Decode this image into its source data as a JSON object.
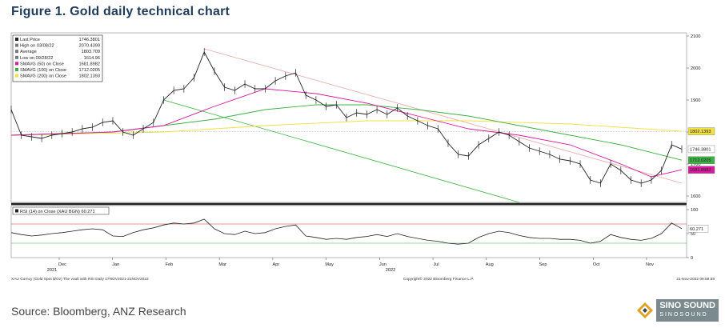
{
  "figure_title": "Figure 1. Gold daily technical chart",
  "source": "Source: Bloomberg, ANZ Research",
  "logo": {
    "name": "SINO SOUND",
    "sub": "SINOSOUND",
    "icon": "diamond-logo-icon"
  },
  "colors": {
    "price": "#222222",
    "sma50": "#d81b9e",
    "sma100": "#3cb043",
    "sma200": "#f0e040",
    "trend": "#3cb043",
    "trend_upper": "#e9a9a9",
    "rsi": "#222222",
    "rsi_upper": "#cc2222",
    "rsi_lower": "#3cb043"
  },
  "footer": {
    "left": "XAU Curncy (Gold Spot   $/Oz) The vault with RSI  Daily 17NOV2021-21NOV2022",
    "center": "Copyright© 2022 Bloomberg Finance L.P.",
    "right": "21-Nov-2022 09:58:59"
  },
  "chart_data": {
    "type": "line",
    "title": "",
    "xlabel": "",
    "ylabel": "",
    "x_ticks": [
      "Dec",
      "Jan",
      "Feb",
      "Mar",
      "Apr",
      "May",
      "Jun",
      "Jul",
      "Aug",
      "Sep",
      "Oct",
      "Nov"
    ],
    "x_years": [
      "2021",
      "2022"
    ],
    "ylim": [
      1580,
      2110
    ],
    "y_ticks": [
      1600,
      1700,
      1800,
      1900,
      2000,
      2100
    ],
    "grid": false,
    "legend": "top-left",
    "legend_entries": [
      {
        "label": "Last Price",
        "value": "1746.3801",
        "color": "#222222"
      },
      {
        "label": "High on 03/08/22",
        "value": "2070.4399",
        "color": "#777777"
      },
      {
        "label": "Average",
        "value": "1803.709",
        "color": "#777777"
      },
      {
        "label": "Low on 09/28/22",
        "value": "1614.96",
        "color": "#777777"
      },
      {
        "label": "SMAVG (50)  on Close",
        "value": "1681.8982",
        "color": "#d81b9e"
      },
      {
        "label": "SMAVG (100)  on Close",
        "value": "1712.0205",
        "color": "#3cb043"
      },
      {
        "label": "SMAVG (200)  on Close",
        "value": "1802.1393",
        "color": "#f0e040"
      }
    ],
    "value_labels": [
      {
        "value": "1802.1393",
        "bg": "#f0e040",
        "fg": "#222222",
        "y": 1802.1393
      },
      {
        "value": "1746.3801",
        "bg": "#ffffff",
        "fg": "#222222",
        "y": 1746.3801
      },
      {
        "value": "1712.0205",
        "bg": "#3cb043",
        "fg": "#ffffff",
        "y": 1712.0205
      },
      {
        "value": "1681.8982",
        "bg": "#d81b9e",
        "fg": "#ffffff",
        "y": 1681.8982
      }
    ],
    "series": [
      {
        "name": "Last Price",
        "x": [
          0,
          4,
          8,
          12,
          16,
          20,
          24,
          28,
          32,
          36,
          40,
          44,
          48,
          52,
          56,
          60,
          64,
          68,
          72,
          76,
          80,
          84,
          88,
          92,
          96,
          100,
          104,
          108,
          112,
          116,
          120,
          124,
          128,
          132,
          136,
          140,
          144,
          148,
          152,
          156,
          160,
          164,
          168,
          172,
          176,
          180,
          184,
          188,
          192,
          196,
          200,
          204,
          208,
          212,
          216,
          220,
          224,
          228,
          232,
          236,
          240,
          244,
          248,
          252,
          256,
          260,
          264
        ],
        "values": [
          1870,
          1790,
          1785,
          1780,
          1790,
          1795,
          1800,
          1810,
          1815,
          1830,
          1835,
          1800,
          1790,
          1810,
          1830,
          1900,
          1930,
          1935,
          1970,
          2050,
          1990,
          1940,
          1930,
          1950,
          1935,
          1935,
          1960,
          1975,
          1985,
          1915,
          1900,
          1880,
          1885,
          1845,
          1860,
          1855,
          1870,
          1855,
          1875,
          1850,
          1835,
          1820,
          1810,
          1765,
          1730,
          1725,
          1760,
          1780,
          1800,
          1790,
          1770,
          1750,
          1740,
          1730,
          1715,
          1710,
          1700,
          1650,
          1640,
          1700,
          1680,
          1650,
          1640,
          1650,
          1680,
          1760,
          1746.38
        ]
      },
      {
        "name": "SMAVG (50)",
        "x": [
          0,
          20,
          40,
          60,
          80,
          100,
          120,
          140,
          160,
          180,
          200,
          220,
          240,
          252,
          264
        ],
        "values": [
          1790,
          1795,
          1800,
          1820,
          1880,
          1935,
          1920,
          1890,
          1850,
          1810,
          1790,
          1760,
          1700,
          1660,
          1681.9
        ]
      },
      {
        "name": "SMAVG (100)",
        "x": [
          0,
          40,
          80,
          100,
          120,
          140,
          160,
          180,
          200,
          220,
          240,
          264
        ],
        "values": [
          1790,
          1800,
          1840,
          1870,
          1885,
          1885,
          1870,
          1850,
          1820,
          1790,
          1760,
          1712.02
        ]
      },
      {
        "name": "SMAVG (200)",
        "x": [
          0,
          60,
          100,
          140,
          180,
          220,
          264
        ],
        "values": [
          1790,
          1800,
          1820,
          1835,
          1835,
          1825,
          1802.14
        ]
      }
    ],
    "trendlines": [
      {
        "name": "lower",
        "from": [
          60,
          1900
        ],
        "to": [
          200,
          1580
        ]
      },
      {
        "name": "upper",
        "from": [
          76,
          2060
        ],
        "to": [
          264,
          1640
        ]
      }
    ],
    "rsi": {
      "title": "RSI (14)  on Close (XAU BGN) 60.271",
      "value_label": "60.271",
      "ylim": [
        0,
        100
      ],
      "y_ticks": [
        0,
        50,
        100
      ],
      "upper": 70,
      "lower": 30,
      "values": [
        52,
        48,
        45,
        47,
        50,
        52,
        55,
        58,
        60,
        58,
        45,
        44,
        52,
        58,
        62,
        68,
        72,
        70,
        72,
        80,
        60,
        50,
        48,
        55,
        50,
        52,
        60,
        65,
        68,
        45,
        42,
        38,
        40,
        38,
        42,
        44,
        48,
        44,
        50,
        44,
        40,
        36,
        34,
        30,
        28,
        30,
        42,
        50,
        55,
        52,
        46,
        42,
        40,
        40,
        38,
        38,
        36,
        30,
        34,
        48,
        42,
        38,
        36,
        40,
        50,
        72,
        60.27
      ]
    }
  }
}
